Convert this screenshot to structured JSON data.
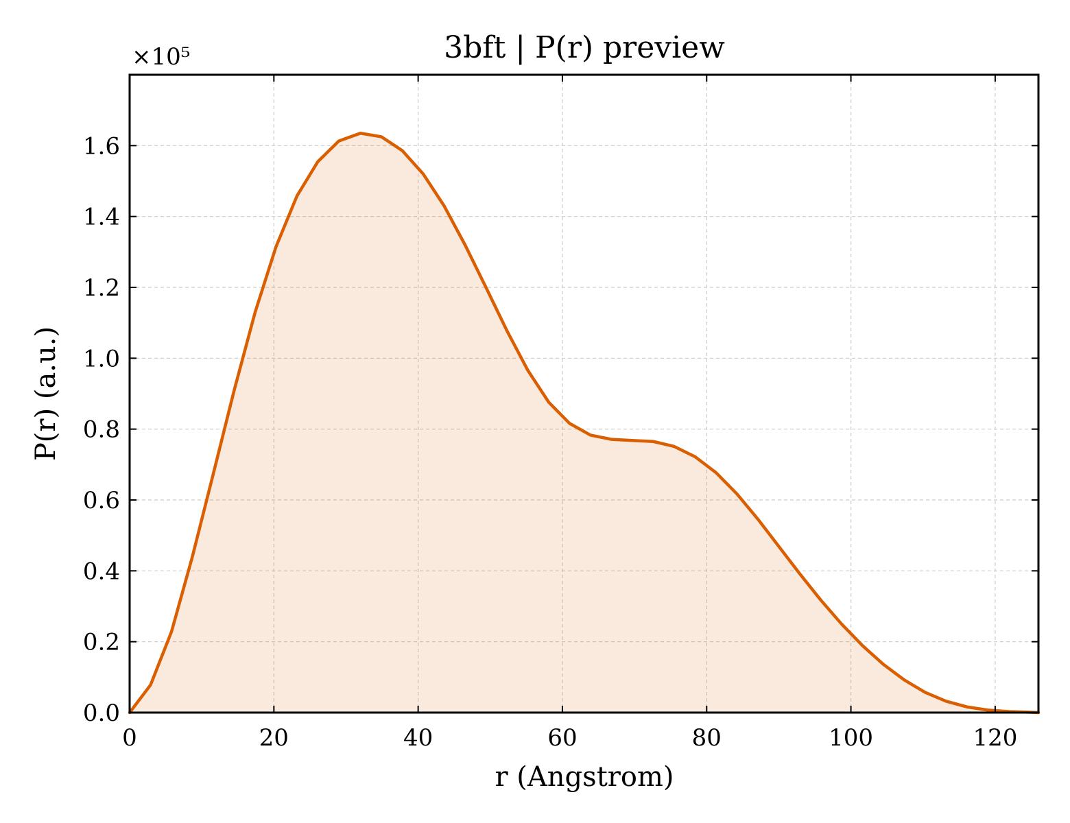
{
  "chart_data": {
    "type": "area",
    "title": "3bft | P(r) preview",
    "xlabel": "r (Angstrom)",
    "ylabel": "P(r) (a.u.)",
    "y_scale_label": "×10⁵",
    "xlim": [
      0,
      126
    ],
    "ylim": [
      0,
      1.8
    ],
    "xticks": [
      0,
      20,
      40,
      60,
      80,
      100,
      120
    ],
    "xtick_labels": [
      "0",
      "20",
      "40",
      "60",
      "80",
      "100",
      "120"
    ],
    "yticks": [
      0,
      0.2,
      0.4,
      0.6,
      0.8,
      1.0,
      1.2,
      1.4,
      1.6
    ],
    "ytick_labels": [
      "0.0",
      "0.2",
      "0.4",
      "0.6",
      "0.8",
      "1.0",
      "1.2",
      "1.4",
      "1.6"
    ],
    "grid": true,
    "legend": "none",
    "series": [
      {
        "color": "#d95f02",
        "fill_color": "#d95f02",
        "fill_opacity": 0.13,
        "x": [
          0,
          2.9,
          5.8,
          8.7,
          11.6,
          14.5,
          17.4,
          20.3,
          23.2,
          26.1,
          29.0,
          32.0,
          34.9,
          37.8,
          40.7,
          43.6,
          46.5,
          49.4,
          52.3,
          55.2,
          58.1,
          61.0,
          63.9,
          66.8,
          69.7,
          72.6,
          75.5,
          78.4,
          81.3,
          84.2,
          87.1,
          90.0,
          92.9,
          95.8,
          98.7,
          101.6,
          104.5,
          107.4,
          110.3,
          113.2,
          116.1,
          119.0,
          121.9,
          124.8,
          126.0
        ],
        "y": [
          0.0,
          0.078,
          0.228,
          0.44,
          0.674,
          0.91,
          1.13,
          1.315,
          1.458,
          1.555,
          1.613,
          1.635,
          1.625,
          1.586,
          1.52,
          1.43,
          1.32,
          1.2,
          1.078,
          0.966,
          0.876,
          0.816,
          0.783,
          0.771,
          0.768,
          0.765,
          0.751,
          0.722,
          0.677,
          0.617,
          0.546,
          0.469,
          0.392,
          0.318,
          0.25,
          0.189,
          0.136,
          0.092,
          0.057,
          0.032,
          0.016,
          0.007,
          0.003,
          0.001,
          0.0
        ]
      }
    ]
  }
}
